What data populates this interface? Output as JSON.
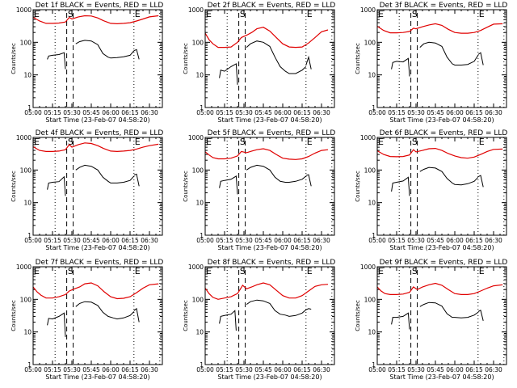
{
  "chart_data": {
    "type": "line",
    "layout": "3x3 grid of panels",
    "xlabel": "Start Time (23-Feb-07 04:58:20)",
    "ylabel": "Counts/sec",
    "yscale": "log",
    "ylim": [
      1,
      1000
    ],
    "ytick_labels": [
      "1",
      "10",
      "100",
      "1000"
    ],
    "ytick_values": [
      1,
      10,
      100,
      1000
    ],
    "xlim_minutes_after_0500": [
      0,
      100
    ],
    "xtick_labels": [
      "05:00",
      "05:15",
      "05:30",
      "05:45",
      "06:00",
      "06:15",
      "06:30"
    ],
    "xtick_values_minutes": [
      0,
      15,
      30,
      45,
      60,
      75,
      90
    ],
    "legend": {
      "black": "Events",
      "red": "LLD"
    },
    "markers": {
      "E_labels": [
        {
          "text": "E",
          "minute": 0
        },
        {
          "text": "E",
          "minute": 78
        }
      ],
      "S_label": {
        "text": "S",
        "minute": 29
      },
      "dotted_lines_minutes": [
        17,
        78,
        98
      ],
      "dashed_lines_minutes": [
        26,
        31
      ]
    },
    "colors": {
      "events": "#000000",
      "lld": "#e00000"
    },
    "panels": [
      {
        "title": "Det 1f BLACK = Events, RED = LLD",
        "lld": {
          "x": [
            0,
            5,
            10,
            15,
            20,
            25,
            28,
            30,
            35,
            40,
            45,
            50,
            55,
            60,
            65,
            70,
            75,
            80,
            85,
            90,
            97
          ],
          "y": [
            580,
            450,
            380,
            380,
            390,
            420,
            580,
            520,
            600,
            650,
            640,
            560,
            450,
            380,
            370,
            380,
            400,
            450,
            520,
            600,
            650
          ]
        },
        "events": {
          "segments": [
            {
              "x": [
                11,
                12,
                15,
                20,
                24,
                25
              ],
              "y": [
                30,
                38,
                40,
                42,
                48,
                15
              ]
            },
            {
              "x": [
                33,
                36,
                40,
                45,
                50,
                54,
                58,
                60,
                65,
                70,
                75,
                78
              ],
              "y": [
                90,
                105,
                115,
                110,
                85,
                45,
                35,
                33,
                34,
                36,
                40,
                55
              ]
            },
            {
              "x": [
                78,
                80,
                82
              ],
              "y": [
                55,
                60,
                30
              ]
            }
          ]
        }
      },
      {
        "title": "Det 2f BLACK = Events, RED = LLD",
        "lld": {
          "x": [
            0,
            3,
            6,
            10,
            15,
            20,
            25,
            28,
            32,
            36,
            40,
            45,
            50,
            55,
            60,
            65,
            70,
            75,
            80,
            85,
            90,
            95
          ],
          "y": [
            190,
            120,
            90,
            70,
            70,
            72,
            100,
            140,
            165,
            200,
            260,
            290,
            220,
            140,
            90,
            72,
            70,
            72,
            95,
            140,
            210,
            240
          ]
        },
        "events": {
          "segments": [
            {
              "x": [
                11,
                12,
                15,
                20,
                24,
                25
              ],
              "y": [
                8,
                14,
                13,
                18,
                22,
                5
              ]
            },
            {
              "x": [
                32,
                35,
                40,
                45,
                50,
                54,
                58,
                62,
                65,
                70,
                75,
                78
              ],
              "y": [
                70,
                90,
                110,
                100,
                75,
                35,
                18,
                13,
                11,
                11,
                14,
                18
              ]
            },
            {
              "x": [
                78,
                80,
                82
              ],
              "y": [
                20,
                35,
                15
              ]
            }
          ]
        }
      },
      {
        "title": "Det 3f BLACK = Events, RED = LLD",
        "lld": {
          "x": [
            0,
            5,
            10,
            15,
            20,
            25,
            28,
            30,
            35,
            40,
            45,
            50,
            55,
            60,
            65,
            70,
            75,
            80,
            85,
            90,
            97
          ],
          "y": [
            310,
            230,
            195,
            195,
            200,
            215,
            270,
            260,
            300,
            340,
            370,
            330,
            250,
            200,
            190,
            190,
            200,
            230,
            290,
            360,
            370
          ]
        },
        "events": {
          "segments": [
            {
              "x": [
                11,
                12,
                15,
                20,
                24,
                25
              ],
              "y": [
                15,
                24,
                26,
                25,
                32,
                9
              ]
            },
            {
              "x": [
                33,
                36,
                40,
                45,
                50,
                54,
                58,
                60,
                65,
                70,
                75,
                78
              ],
              "y": [
                70,
                90,
                100,
                95,
                75,
                35,
                22,
                20,
                20,
                21,
                26,
                40
              ]
            },
            {
              "x": [
                78,
                80,
                82
              ],
              "y": [
                42,
                48,
                20
              ]
            }
          ]
        }
      },
      {
        "title": "Det 4f BLACK = Events, RED = LLD",
        "lld": {
          "x": [
            0,
            5,
            10,
            15,
            20,
            25,
            28,
            30,
            35,
            40,
            45,
            50,
            55,
            60,
            65,
            70,
            75,
            80,
            85,
            90,
            97
          ],
          "y": [
            520,
            400,
            370,
            370,
            380,
            420,
            600,
            500,
            600,
            680,
            650,
            560,
            450,
            380,
            370,
            380,
            400,
            440,
            500,
            560,
            620
          ]
        },
        "events": {
          "segments": [
            {
              "x": [
                11,
                12,
                15,
                20,
                24,
                25
              ],
              "y": [
                25,
                40,
                42,
                44,
                62,
                16
              ]
            },
            {
              "x": [
                33,
                36,
                40,
                45,
                50,
                54,
                58,
                60,
                65,
                70,
                75,
                78
              ],
              "y": [
                100,
                120,
                140,
                130,
                100,
                60,
                45,
                40,
                40,
                42,
                48,
                65
              ]
            },
            {
              "x": [
                78,
                80,
                82
              ],
              "y": [
                70,
                75,
                32
              ]
            }
          ]
        }
      },
      {
        "title": "Det 5f BLACK = Events, RED = LLD",
        "lld": {
          "x": [
            0,
            3,
            6,
            10,
            15,
            20,
            25,
            28,
            32,
            36,
            40,
            45,
            50,
            55,
            60,
            65,
            70,
            75,
            80,
            85,
            90,
            95
          ],
          "y": [
            360,
            290,
            240,
            220,
            220,
            230,
            270,
            370,
            340,
            380,
            420,
            450,
            400,
            300,
            230,
            215,
            210,
            220,
            260,
            330,
            400,
            420
          ]
        },
        "events": {
          "segments": [
            {
              "x": [
                11,
                12,
                15,
                20,
                24,
                25
              ],
              "y": [
                28,
                45,
                48,
                52,
                65,
                18
              ]
            },
            {
              "x": [
                32,
                35,
                40,
                45,
                50,
                54,
                58,
                62,
                65,
                70,
                75,
                78
              ],
              "y": [
                100,
                120,
                140,
                130,
                100,
                60,
                45,
                42,
                42,
                45,
                52,
                65
              ]
            },
            {
              "x": [
                78,
                80,
                82
              ],
              "y": [
                68,
                72,
                32
              ]
            }
          ]
        }
      },
      {
        "title": "Det 6f BLACK = Events, RED = LLD",
        "lld": {
          "x": [
            0,
            5,
            10,
            15,
            20,
            25,
            28,
            30,
            35,
            40,
            45,
            50,
            55,
            60,
            65,
            70,
            75,
            80,
            85,
            90,
            97
          ],
          "y": [
            390,
            300,
            260,
            255,
            260,
            290,
            420,
            360,
            400,
            450,
            460,
            400,
            320,
            270,
            240,
            230,
            250,
            300,
            370,
            430,
            440
          ]
        },
        "events": {
          "segments": [
            {
              "x": [
                11,
                12,
                15,
                20,
                24,
                25
              ],
              "y": [
                22,
                40,
                42,
                46,
                60,
                16
              ]
            },
            {
              "x": [
                33,
                36,
                40,
                45,
                50,
                54,
                58,
                60,
                65,
                70,
                75,
                78
              ],
              "y": [
                90,
                105,
                120,
                115,
                90,
                55,
                40,
                36,
                35,
                38,
                45,
                60
              ]
            },
            {
              "x": [
                78,
                80,
                82
              ],
              "y": [
                62,
                68,
                30
              ]
            }
          ]
        }
      },
      {
        "title": "Det 7f BLACK = Events, RED = LLD",
        "lld": {
          "x": [
            0,
            3,
            6,
            10,
            15,
            20,
            25,
            28,
            32,
            36,
            40,
            45,
            50,
            55,
            60,
            65,
            70,
            75,
            80,
            85,
            90,
            97
          ],
          "y": [
            240,
            170,
            135,
            110,
            110,
            120,
            140,
            180,
            210,
            240,
            300,
            320,
            260,
            170,
            120,
            105,
            108,
            120,
            160,
            220,
            280,
            300
          ]
        },
        "events": {
          "segments": [
            {
              "x": [
                11,
                12,
                15,
                20,
                24,
                25
              ],
              "y": [
                16,
                26,
                25,
                30,
                38,
                7
              ]
            },
            {
              "x": [
                33,
                36,
                40,
                45,
                50,
                54,
                58,
                62,
                65,
                70,
                75,
                78
              ],
              "y": [
                60,
                75,
                85,
                82,
                65,
                40,
                30,
                27,
                25,
                27,
                32,
                42
              ]
            },
            {
              "x": [
                78,
                80,
                82
              ],
              "y": [
                45,
                52,
                20
              ]
            }
          ]
        }
      },
      {
        "title": "Det 8f BLACK = Events, RED = LLD",
        "lld": {
          "x": [
            0,
            3,
            6,
            10,
            15,
            20,
            25,
            27,
            29,
            32,
            36,
            40,
            45,
            50,
            55,
            60,
            65,
            70,
            75,
            80,
            85,
            90,
            95
          ],
          "y": [
            220,
            150,
            115,
            100,
            110,
            120,
            150,
            200,
            270,
            210,
            240,
            280,
            320,
            280,
            190,
            130,
            110,
            110,
            130,
            180,
            250,
            280,
            290
          ]
        },
        "events": {
          "segments": [
            {
              "x": [
                11,
                12,
                15,
                20,
                23,
                24
              ],
              "y": [
                18,
                30,
                32,
                35,
                45,
                11
              ]
            },
            {
              "x": [
                32,
                35,
                40,
                45,
                50,
                54,
                58,
                62,
                65,
                70,
                75,
                78
              ],
              "y": [
                70,
                85,
                95,
                90,
                75,
                45,
                35,
                33,
                30,
                32,
                38,
                48
              ]
            },
            {
              "x": [
                78,
                80,
                82
              ],
              "y": [
                48,
                52,
                50
              ]
            }
          ]
        }
      },
      {
        "title": "Det 9f BLACK = Events, RED = LLD",
        "lld": {
          "x": [
            0,
            3,
            6,
            10,
            15,
            20,
            25,
            28,
            31,
            35,
            40,
            45,
            50,
            55,
            60,
            65,
            70,
            75,
            80,
            85,
            90,
            97
          ],
          "y": [
            240,
            180,
            150,
            140,
            140,
            145,
            165,
            240,
            200,
            240,
            280,
            310,
            270,
            200,
            150,
            140,
            140,
            150,
            180,
            220,
            260,
            280
          ]
        },
        "events": {
          "segments": [
            {
              "x": [
                11,
                12,
                15,
                20,
                24,
                25
              ],
              "y": [
                17,
                28,
                28,
                30,
                38,
                12
              ]
            },
            {
              "x": [
                33,
                36,
                40,
                45,
                50,
                54,
                58,
                60,
                65,
                70,
                75,
                78
              ],
              "y": [
                60,
                70,
                80,
                78,
                62,
                36,
                28,
                28,
                27,
                28,
                33,
                40
              ]
            },
            {
              "x": [
                78,
                80,
                82
              ],
              "y": [
                42,
                46,
                22
              ]
            }
          ]
        }
      }
    ]
  }
}
